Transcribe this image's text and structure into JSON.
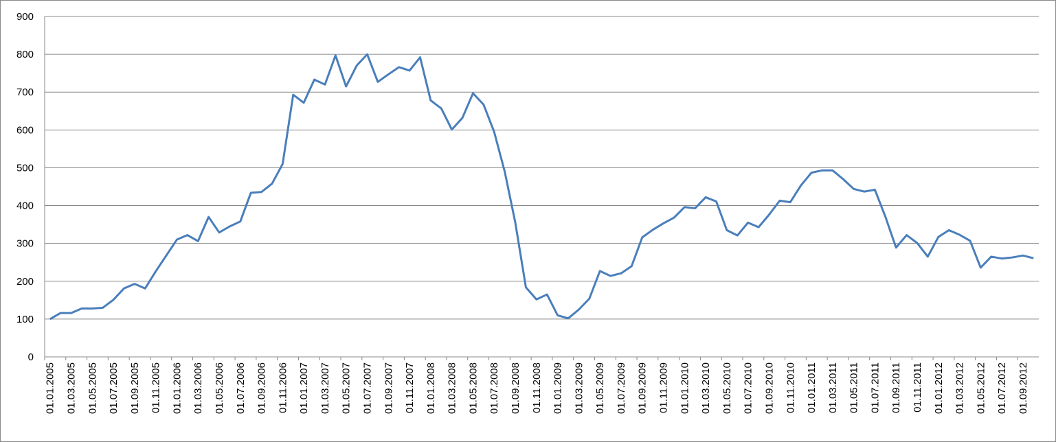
{
  "chart_data": {
    "type": "line",
    "categories": [
      "01.01.2005",
      null,
      "01.03.2005",
      null,
      "01.05.2005",
      null,
      "01.07.2005",
      null,
      "01.09.2005",
      null,
      "01.11.2005",
      null,
      "01.01.2006",
      null,
      "01.03.2006",
      null,
      "01.05.2006",
      null,
      "01.07.2006",
      null,
      "01.09.2006",
      null,
      "01.11.2006",
      null,
      "01.01.2007",
      null,
      "01.03.2007",
      null,
      "01.05.2007",
      null,
      "01.07.2007",
      null,
      "01.09.2007",
      null,
      "01.11.2007",
      null,
      "01.01.2008",
      null,
      "01.03.2008",
      null,
      "01.05.2008",
      null,
      "01.07.2008",
      null,
      "01.09.2008",
      null,
      "01.11.2008",
      null,
      "01.01.2009",
      null,
      "01.03.2009",
      null,
      "01.05.2009",
      null,
      "01.07.2009",
      null,
      "01.09.2009",
      null,
      "01.11.2009",
      null,
      "01.01.2010",
      null,
      "01.03.2010",
      null,
      "01.05.2010",
      null,
      "01.07.2010",
      null,
      "01.09.2010",
      null,
      "01.11.2010",
      null,
      "01.01.2011",
      null,
      "01.03.2011",
      null,
      "01.05.2011",
      null,
      "01.07.2011",
      null,
      "01.09.2011",
      null,
      "01.11.2011",
      null,
      "01.01.2012",
      null,
      "01.03.2012",
      null,
      "01.05.2012",
      null,
      "01.07.2012",
      null,
      "01.09.2012",
      null
    ],
    "values": [
      100,
      116,
      116,
      128,
      128,
      130,
      151,
      181,
      193,
      181,
      226,
      268,
      310,
      322,
      306,
      370,
      329,
      345,
      358,
      434,
      436,
      458,
      510,
      693,
      672,
      733,
      720,
      797,
      715,
      770,
      800,
      727,
      747,
      766,
      757,
      792,
      678,
      657,
      601,
      632,
      697,
      667,
      595,
      490,
      355,
      184,
      152,
      165,
      110,
      102,
      125,
      154,
      227,
      214,
      221,
      240,
      316,
      336,
      353,
      368,
      396,
      393,
      422,
      411,
      335,
      321,
      355,
      343,
      376,
      413,
      409,
      453,
      487,
      493,
      493,
      470,
      444,
      437,
      442,
      370,
      289,
      322,
      301,
      265,
      317,
      335,
      323,
      307,
      236,
      265,
      260,
      263,
      268,
      261
    ],
    "color": "#4a7ebb",
    "ylim": [
      0,
      900
    ],
    "yticks": [
      0,
      100,
      200,
      300,
      400,
      500,
      600,
      700,
      800,
      900
    ],
    "grid": true
  }
}
